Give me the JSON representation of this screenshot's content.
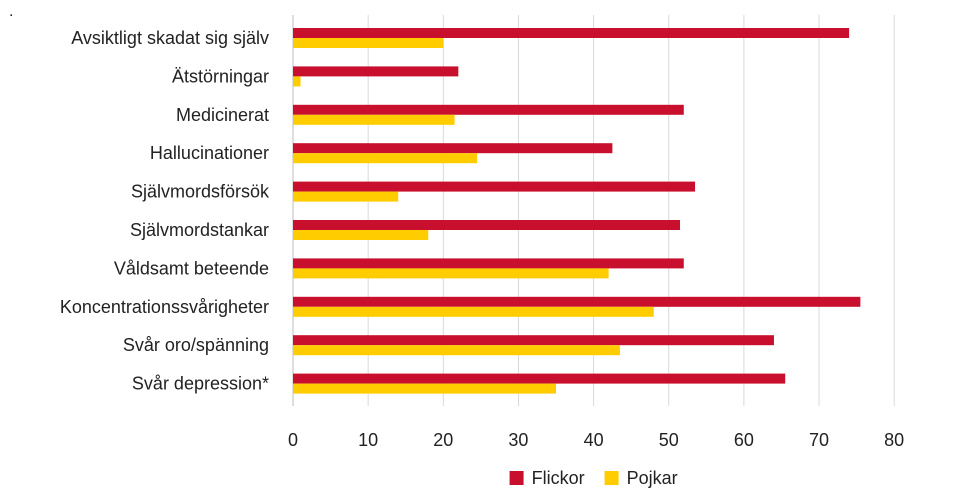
{
  "chart_data": {
    "type": "bar",
    "orientation": "horizontal",
    "corner_mark": ".",
    "categories": [
      "Avsiktligt skadat sig själv",
      "Ätstörningar",
      "Medicinerat",
      "Hallucinationer",
      "Självmordsförsök",
      "Självmordstankar",
      "Våldsamt beteende",
      "Koncentrationssvårigheter",
      "Svår oro/spänning",
      "Svår depression*"
    ],
    "series": [
      {
        "name": "Flickor",
        "color": "#c8102e",
        "values": [
          74,
          22,
          52,
          42.5,
          53.5,
          51.5,
          52,
          75.5,
          64,
          65.5
        ]
      },
      {
        "name": "Pojkar",
        "color": "#ffcc00",
        "values": [
          20,
          1,
          21.5,
          24.5,
          14,
          18,
          42,
          48,
          43.5,
          35
        ]
      }
    ],
    "xlim": [
      0,
      80
    ],
    "xticks": [
      0,
      10,
      20,
      30,
      40,
      50,
      60,
      70,
      80
    ],
    "grid": "vertical",
    "legend_position": "bottom-center"
  }
}
